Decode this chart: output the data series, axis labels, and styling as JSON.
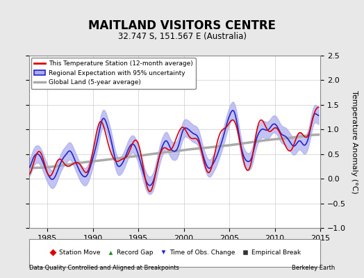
{
  "title": "MAITLAND VISITORS CENTRE",
  "subtitle": "32.747 S, 151.567 E (Australia)",
  "ylabel": "Temperature Anomaly (°C)",
  "footer_left": "Data Quality Controlled and Aligned at Breakpoints",
  "footer_right": "Berkeley Earth",
  "xlim": [
    1983,
    2015
  ],
  "ylim": [
    -1.0,
    2.5
  ],
  "yticks": [
    -1.0,
    -0.5,
    0.0,
    0.5,
    1.0,
    1.5,
    2.0,
    2.5
  ],
  "xticks": [
    1985,
    1990,
    1995,
    2000,
    2005,
    2010,
    2015
  ],
  "bg_color": "#e8e8e8",
  "plot_bg_color": "#ffffff",
  "red_color": "#dd0000",
  "blue_color": "#2222cc",
  "blue_fill_color": "#aaaaee",
  "gray_color": "#aaaaaa",
  "legend1_items": [
    "This Temperature Station (12-month average)",
    "Regional Expectation with 95% uncertainty",
    "Global Land (5-year average)"
  ],
  "legend2_items": [
    "Station Move",
    "Record Gap",
    "Time of Obs. Change",
    "Empirical Break"
  ]
}
